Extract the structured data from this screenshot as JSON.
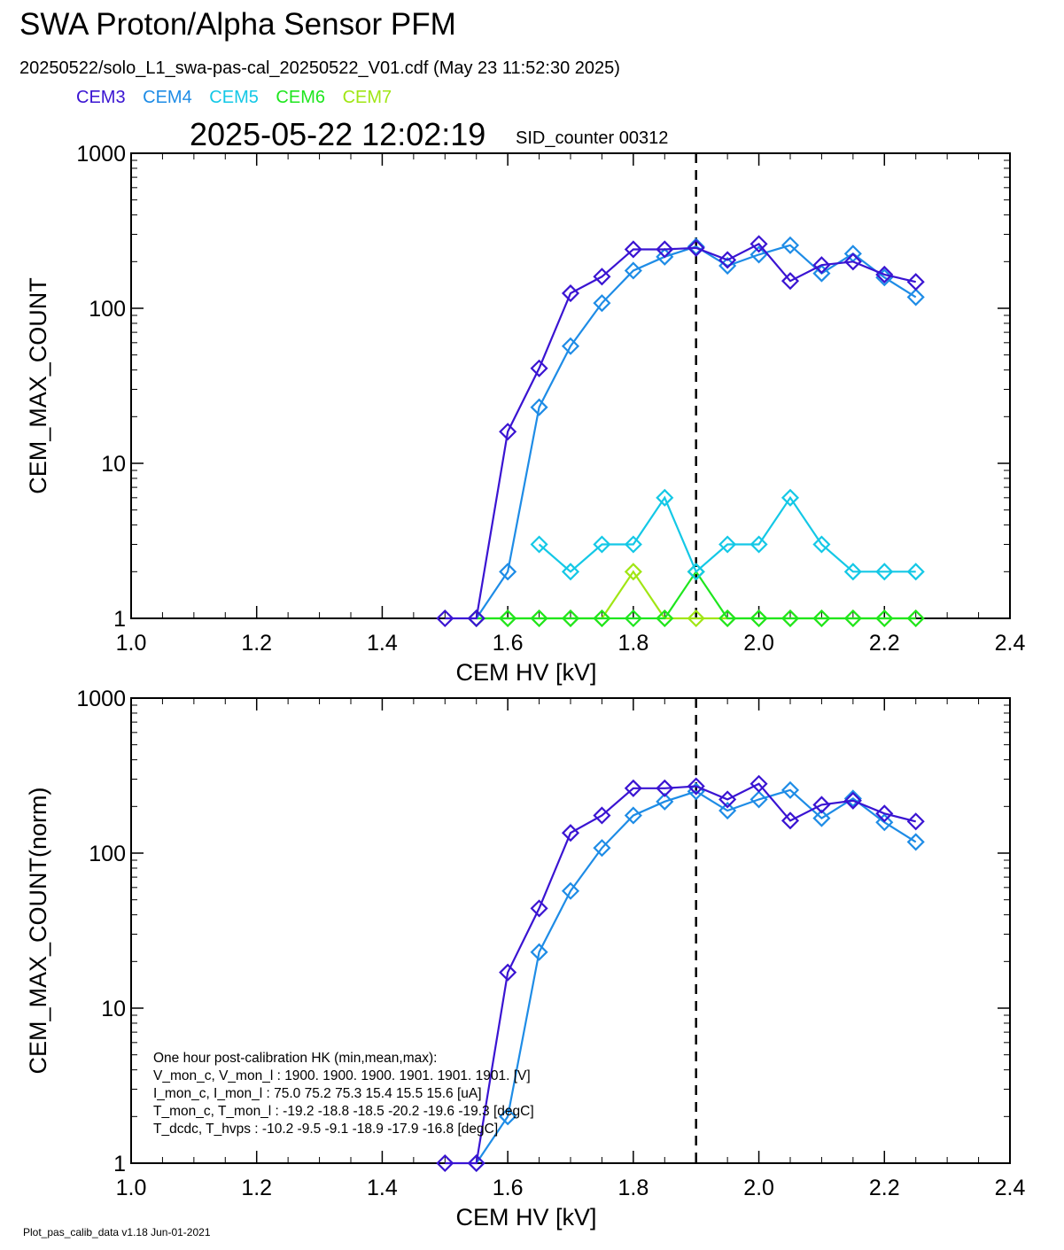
{
  "header": {
    "title": "SWA Proton/Alpha Sensor PFM",
    "file_info": "20250522/solo_L1_swa-pas-cal_20250522_V01.cdf  (May 23 11:52:30 2025)",
    "timestamp": "2025-05-22 12:02:19",
    "sid_counter": "SID_counter 00312"
  },
  "legend": [
    {
      "name": "CEM3",
      "color": "#3a14d2"
    },
    {
      "name": "CEM4",
      "color": "#1e8ce6"
    },
    {
      "name": "CEM5",
      "color": "#14c8e6"
    },
    {
      "name": "CEM6",
      "color": "#1ee61e"
    },
    {
      "name": "CEM7",
      "color": "#a0e614"
    }
  ],
  "footer": "Plot_pas_calib_data v1.18 Jun-01-2021",
  "chart_data": [
    {
      "type": "line",
      "xlabel": "CEM HV [kV]",
      "ylabel": "CEM_MAX_COUNT",
      "xlim": [
        1.0,
        2.4
      ],
      "ylim": [
        1,
        1000
      ],
      "yscale": "log",
      "xticks": [
        "1.0",
        "1.2",
        "1.4",
        "1.6",
        "1.8",
        "2.0",
        "2.2",
        "2.4"
      ],
      "yticks": [
        "1",
        "10",
        "100",
        "1000"
      ],
      "vline_x": 1.9,
      "series": [
        {
          "name": "CEM7",
          "color": "#a0e614",
          "x": [
            1.55,
            1.6,
            1.65,
            1.7,
            1.75,
            1.8,
            1.85,
            1.9,
            1.95,
            2.0,
            2.05,
            2.1,
            2.15,
            2.2,
            2.25
          ],
          "y": [
            1,
            1,
            1,
            1,
            1,
            2,
            1,
            1,
            1,
            1,
            1,
            1,
            1,
            1,
            1
          ]
        },
        {
          "name": "CEM6",
          "color": "#1ee61e",
          "x": [
            1.55,
            1.6,
            1.65,
            1.7,
            1.75,
            1.8,
            1.85,
            1.9,
            1.95,
            2.0,
            2.05,
            2.1,
            2.15,
            2.2,
            2.25
          ],
          "y": [
            1,
            1,
            1,
            1,
            1,
            1,
            1,
            2,
            1,
            1,
            1,
            1,
            1,
            1,
            1
          ]
        },
        {
          "name": "CEM5",
          "color": "#14c8e6",
          "x": [
            1.65,
            1.7,
            1.75,
            1.8,
            1.85,
            1.9,
            1.95,
            2.0,
            2.05,
            2.1,
            2.15,
            2.2,
            2.25
          ],
          "y": [
            3,
            2,
            3,
            3,
            6,
            2,
            3,
            3,
            6,
            3,
            2,
            2,
            2
          ]
        },
        {
          "name": "CEM4",
          "color": "#1e8ce6",
          "x": [
            1.55,
            1.6,
            1.65,
            1.7,
            1.75,
            1.8,
            1.85,
            1.9,
            1.95,
            2.0,
            2.05,
            2.1,
            2.15,
            2.2,
            2.25
          ],
          "y": [
            1,
            2,
            23,
            57,
            108,
            175,
            215,
            250,
            188,
            222,
            255,
            168,
            225,
            158,
            118
          ]
        },
        {
          "name": "CEM3",
          "color": "#3a14d2",
          "x": [
            1.5,
            1.55,
            1.6,
            1.65,
            1.7,
            1.75,
            1.8,
            1.85,
            1.9,
            1.95,
            2.0,
            2.05,
            2.1,
            2.15,
            2.2,
            2.25
          ],
          "y": [
            1,
            1,
            16,
            41,
            125,
            160,
            240,
            240,
            245,
            205,
            260,
            150,
            190,
            200,
            165,
            148
          ]
        }
      ]
    },
    {
      "type": "line",
      "xlabel": "CEM HV [kV]",
      "ylabel": "CEM_MAX_COUNT(norm)",
      "xlim": [
        1.0,
        2.4
      ],
      "ylim": [
        1,
        1000
      ],
      "yscale": "log",
      "xticks": [
        "1.0",
        "1.2",
        "1.4",
        "1.6",
        "1.8",
        "2.0",
        "2.2",
        "2.4"
      ],
      "yticks": [
        "1",
        "10",
        "100",
        "1000"
      ],
      "vline_x": 1.9,
      "series": [
        {
          "name": "CEM4",
          "color": "#1e8ce6",
          "x": [
            1.55,
            1.6,
            1.65,
            1.7,
            1.75,
            1.8,
            1.85,
            1.9,
            1.95,
            2.0,
            2.05,
            2.1,
            2.15,
            2.2,
            2.25
          ],
          "y": [
            1,
            2,
            23,
            57,
            108,
            175,
            215,
            250,
            188,
            222,
            255,
            168,
            225,
            158,
            118
          ]
        },
        {
          "name": "CEM3",
          "color": "#3a14d2",
          "x": [
            1.5,
            1.55,
            1.6,
            1.65,
            1.7,
            1.75,
            1.8,
            1.85,
            1.9,
            1.95,
            2.0,
            2.05,
            2.1,
            2.15,
            2.2,
            2.25
          ],
          "y": [
            1,
            1,
            17,
            44,
            135,
            175,
            262,
            262,
            270,
            222,
            280,
            162,
            205,
            218,
            180,
            160
          ]
        }
      ],
      "annotation": [
        "One hour post-calibration HK (min,mean,max):",
        "V_mon_c, V_mon_l :   1900.  1900.  1900.      1901.  1901.  1901. [V]",
        "I_mon_c,  I_mon_l :     75.0   75.2   75.3         15.4   15.5   15.6  [uA]",
        "T_mon_c, T_mon_l :   -19.2  -18.8  -18.5        -20.2  -19.6  -19.3  [degC]",
        "T_dcdc,    T_hvps :     -10.2   -9.5   -9.1         -18.9  -17.9  -16.8  [degC]"
      ]
    }
  ]
}
